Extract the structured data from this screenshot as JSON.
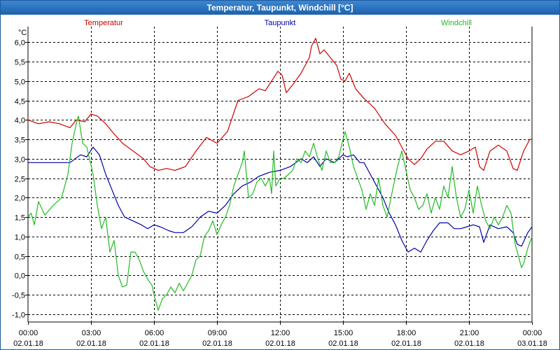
{
  "window": {
    "title": "Temperatur, Taupunkt, Windchill [°C]"
  },
  "chart_data": {
    "type": "line",
    "title": "Temperatur, Taupunkt, Windchill [°C]",
    "ylabel": "°C",
    "xlabel": "",
    "ylim": [
      -1.2,
      6.4
    ],
    "yticks": [
      6.0,
      5.5,
      5.0,
      4.5,
      4.0,
      3.5,
      3.0,
      2.5,
      2.0,
      1.5,
      1.0,
      0.5,
      0.0,
      -0.5,
      -1.0
    ],
    "ytick_labels": [
      "6,0",
      "5,5",
      "5,0",
      "4,5",
      "4,0",
      "3,5",
      "3,0",
      "2,5",
      "2,0",
      "1,5",
      "1,0",
      "0,5",
      "0,0",
      "-0,5",
      "-1,0"
    ],
    "xlim": [
      0,
      24
    ],
    "x_ticks": [
      {
        "h": 0,
        "time": "00:00",
        "date": "02.01.18"
      },
      {
        "h": 3,
        "time": "03:00",
        "date": "02.01.18"
      },
      {
        "h": 6,
        "time": "06:00",
        "date": "02.01.18"
      },
      {
        "h": 9,
        "time": "09:00",
        "date": "02.01.18"
      },
      {
        "h": 12,
        "time": "12:00",
        "date": "02.01.18"
      },
      {
        "h": 15,
        "time": "15:00",
        "date": "02.01.18"
      },
      {
        "h": 18,
        "time": "18:00",
        "date": "02.01.18"
      },
      {
        "h": 21,
        "time": "21:00",
        "date": "02.01.18"
      },
      {
        "h": 24,
        "time": "00:00",
        "date": "03.01.18"
      }
    ],
    "grid": true,
    "series": [
      {
        "name": "Temperatur",
        "color": "#cc0000",
        "legend_position": "top-left",
        "points": [
          [
            0,
            4.0
          ],
          [
            0.5,
            3.9
          ],
          [
            1,
            3.95
          ],
          [
            1.5,
            3.9
          ],
          [
            2,
            3.8
          ],
          [
            2.3,
            4.0
          ],
          [
            2.7,
            3.95
          ],
          [
            3,
            4.15
          ],
          [
            3.3,
            4.1
          ],
          [
            3.7,
            3.9
          ],
          [
            4,
            3.7
          ],
          [
            4.5,
            3.4
          ],
          [
            5,
            3.2
          ],
          [
            5.5,
            3.0
          ],
          [
            5.8,
            2.8
          ],
          [
            6.2,
            2.7
          ],
          [
            6.6,
            2.75
          ],
          [
            7,
            2.7
          ],
          [
            7.5,
            2.8
          ],
          [
            8,
            3.2
          ],
          [
            8.5,
            3.55
          ],
          [
            9,
            3.4
          ],
          [
            9.5,
            3.7
          ],
          [
            10,
            4.5
          ],
          [
            10.5,
            4.6
          ],
          [
            11,
            4.8
          ],
          [
            11.3,
            4.75
          ],
          [
            11.6,
            5.0
          ],
          [
            11.9,
            5.25
          ],
          [
            12.1,
            5.15
          ],
          [
            12.3,
            4.7
          ],
          [
            12.6,
            4.9
          ],
          [
            13,
            5.2
          ],
          [
            13.4,
            5.6
          ],
          [
            13.5,
            5.9
          ],
          [
            13.7,
            6.1
          ],
          [
            13.9,
            5.7
          ],
          [
            14.1,
            5.8
          ],
          [
            14.4,
            5.6
          ],
          [
            14.7,
            5.4
          ],
          [
            14.9,
            5.05
          ],
          [
            15.1,
            5.0
          ],
          [
            15.3,
            5.2
          ],
          [
            15.6,
            4.8
          ],
          [
            16,
            4.55
          ],
          [
            16.5,
            4.3
          ],
          [
            17,
            3.9
          ],
          [
            17.5,
            3.6
          ],
          [
            17.8,
            3.3
          ],
          [
            18.1,
            3.0
          ],
          [
            18.4,
            2.85
          ],
          [
            18.7,
            3.0
          ],
          [
            19,
            3.25
          ],
          [
            19.4,
            3.45
          ],
          [
            19.8,
            3.45
          ],
          [
            20.2,
            3.2
          ],
          [
            20.6,
            3.1
          ],
          [
            21,
            3.2
          ],
          [
            21.3,
            3.3
          ],
          [
            21.5,
            2.8
          ],
          [
            21.7,
            2.7
          ],
          [
            22,
            3.2
          ],
          [
            22.4,
            3.35
          ],
          [
            22.8,
            3.2
          ],
          [
            23.1,
            2.75
          ],
          [
            23.3,
            2.7
          ],
          [
            23.6,
            3.2
          ],
          [
            23.9,
            3.5
          ],
          [
            24,
            3.5
          ]
        ]
      },
      {
        "name": "Taupunkt",
        "color": "#0000aa",
        "legend_position": "top-center",
        "points": [
          [
            0,
            2.9
          ],
          [
            1,
            2.9
          ],
          [
            2,
            2.9
          ],
          [
            2.5,
            3.1
          ],
          [
            2.8,
            3.05
          ],
          [
            3.1,
            3.3
          ],
          [
            3.4,
            3.1
          ],
          [
            3.7,
            2.6
          ],
          [
            4,
            2.2
          ],
          [
            4.3,
            1.8
          ],
          [
            4.6,
            1.5
          ],
          [
            5,
            1.4
          ],
          [
            5.4,
            1.3
          ],
          [
            5.7,
            1.2
          ],
          [
            6,
            1.3
          ],
          [
            6.3,
            1.25
          ],
          [
            6.7,
            1.15
          ],
          [
            7,
            1.1
          ],
          [
            7.4,
            1.1
          ],
          [
            7.8,
            1.25
          ],
          [
            8.2,
            1.5
          ],
          [
            8.6,
            1.65
          ],
          [
            9,
            1.6
          ],
          [
            9.4,
            1.8
          ],
          [
            9.8,
            2.1
          ],
          [
            10.2,
            2.3
          ],
          [
            10.6,
            2.4
          ],
          [
            11,
            2.55
          ],
          [
            11.5,
            2.65
          ],
          [
            12,
            2.7
          ],
          [
            12.5,
            2.8
          ],
          [
            13,
            3.0
          ],
          [
            13.3,
            2.9
          ],
          [
            13.6,
            3.05
          ],
          [
            13.9,
            2.8
          ],
          [
            14.2,
            3.0
          ],
          [
            14.6,
            2.9
          ],
          [
            15,
            3.1
          ],
          [
            15.2,
            3.05
          ],
          [
            15.5,
            3.1
          ],
          [
            15.8,
            2.9
          ],
          [
            16,
            2.9
          ],
          [
            16.3,
            2.6
          ],
          [
            16.6,
            2.3
          ],
          [
            16.9,
            2.0
          ],
          [
            17.2,
            1.6
          ],
          [
            17.5,
            1.3
          ],
          [
            17.8,
            0.9
          ],
          [
            18.1,
            0.6
          ],
          [
            18.4,
            0.7
          ],
          [
            18.7,
            0.6
          ],
          [
            19,
            0.9
          ],
          [
            19.3,
            1.15
          ],
          [
            19.6,
            1.35
          ],
          [
            20,
            1.35
          ],
          [
            20.3,
            1.2
          ],
          [
            20.6,
            1.2
          ],
          [
            20.9,
            1.25
          ],
          [
            21.2,
            1.3
          ],
          [
            21.5,
            1.25
          ],
          [
            21.7,
            0.85
          ],
          [
            22,
            1.3
          ],
          [
            22.4,
            1.2
          ],
          [
            22.8,
            1.25
          ],
          [
            23.1,
            1.1
          ],
          [
            23.3,
            0.8
          ],
          [
            23.5,
            0.75
          ],
          [
            23.8,
            1.1
          ],
          [
            24,
            1.25
          ]
        ]
      },
      {
        "name": "Windchill",
        "color": "#22bb22",
        "legend_position": "top-right",
        "points": [
          [
            0,
            1.5
          ],
          [
            0.15,
            1.6
          ],
          [
            0.3,
            1.3
          ],
          [
            0.5,
            1.9
          ],
          [
            0.8,
            1.55
          ],
          [
            1.2,
            1.8
          ],
          [
            1.6,
            2.0
          ],
          [
            1.9,
            2.6
          ],
          [
            2.1,
            3.4
          ],
          [
            2.3,
            3.9
          ],
          [
            2.4,
            4.1
          ],
          [
            2.6,
            3.4
          ],
          [
            2.8,
            3.3
          ],
          [
            3.1,
            2.6
          ],
          [
            3.3,
            1.8
          ],
          [
            3.5,
            1.2
          ],
          [
            3.7,
            1.5
          ],
          [
            3.9,
            0.6
          ],
          [
            4.1,
            0.9
          ],
          [
            4.3,
            0.0
          ],
          [
            4.5,
            -0.3
          ],
          [
            4.7,
            -0.25
          ],
          [
            4.9,
            0.6
          ],
          [
            5.1,
            0.6
          ],
          [
            5.3,
            0.4
          ],
          [
            5.5,
            0.1
          ],
          [
            5.7,
            -0.1
          ],
          [
            5.9,
            -0.25
          ],
          [
            6.0,
            -0.5
          ],
          [
            6.2,
            -0.9
          ],
          [
            6.4,
            -0.6
          ],
          [
            6.6,
            -0.5
          ],
          [
            6.8,
            -0.3
          ],
          [
            7.0,
            -0.45
          ],
          [
            7.2,
            -0.2
          ],
          [
            7.4,
            -0.4
          ],
          [
            7.6,
            -0.2
          ],
          [
            7.8,
            0.0
          ],
          [
            8.0,
            0.4
          ],
          [
            8.2,
            0.5
          ],
          [
            8.4,
            1.0
          ],
          [
            8.6,
            1.15
          ],
          [
            8.8,
            1.4
          ],
          [
            9.0,
            1.05
          ],
          [
            9.2,
            1.3
          ],
          [
            9.4,
            1.5
          ],
          [
            9.6,
            1.8
          ],
          [
            9.8,
            2.3
          ],
          [
            10.0,
            2.6
          ],
          [
            10.2,
            2.9
          ],
          [
            10.3,
            3.2
          ],
          [
            10.5,
            2.0
          ],
          [
            10.7,
            2.1
          ],
          [
            10.9,
            2.4
          ],
          [
            11.1,
            2.5
          ],
          [
            11.3,
            2.3
          ],
          [
            11.5,
            2.5
          ],
          [
            11.6,
            2.1
          ],
          [
            11.7,
            3.2
          ],
          [
            11.8,
            2.3
          ],
          [
            12,
            2.5
          ],
          [
            12.2,
            2.5
          ],
          [
            12.4,
            2.6
          ],
          [
            12.6,
            2.7
          ],
          [
            12.8,
            3.0
          ],
          [
            13.0,
            2.9
          ],
          [
            13.2,
            3.2
          ],
          [
            13.4,
            3.05
          ],
          [
            13.6,
            3.4
          ],
          [
            13.8,
            3.0
          ],
          [
            14.0,
            2.7
          ],
          [
            14.2,
            3.2
          ],
          [
            14.4,
            2.9
          ],
          [
            14.6,
            2.9
          ],
          [
            14.8,
            3.05
          ],
          [
            15.0,
            3.5
          ],
          [
            15.1,
            3.7
          ],
          [
            15.3,
            3.3
          ],
          [
            15.5,
            2.8
          ],
          [
            15.7,
            2.5
          ],
          [
            15.9,
            2.2
          ],
          [
            16.1,
            1.7
          ],
          [
            16.3,
            2.1
          ],
          [
            16.5,
            1.8
          ],
          [
            16.7,
            2.5
          ],
          [
            16.9,
            1.8
          ],
          [
            17.1,
            1.5
          ],
          [
            17.4,
            2.3
          ],
          [
            17.6,
            2.8
          ],
          [
            17.8,
            3.2
          ],
          [
            18.0,
            2.7
          ],
          [
            18.2,
            2.2
          ],
          [
            18.4,
            2.0
          ],
          [
            18.6,
            1.7
          ],
          [
            18.8,
            1.8
          ],
          [
            19.0,
            2.1
          ],
          [
            19.2,
            1.6
          ],
          [
            19.4,
            2.0
          ],
          [
            19.6,
            1.7
          ],
          [
            19.8,
            2.3
          ],
          [
            20.0,
            2.0
          ],
          [
            20.2,
            2.8
          ],
          [
            20.4,
            2.0
          ],
          [
            20.6,
            1.5
          ],
          [
            20.8,
            1.7
          ],
          [
            21.0,
            2.2
          ],
          [
            21.2,
            1.6
          ],
          [
            21.4,
            2.3
          ],
          [
            21.6,
            1.8
          ],
          [
            21.8,
            1.4
          ],
          [
            22.0,
            1.2
          ],
          [
            22.2,
            1.5
          ],
          [
            22.4,
            1.3
          ],
          [
            22.6,
            1.5
          ],
          [
            22.8,
            1.8
          ],
          [
            23.0,
            1.6
          ],
          [
            23.2,
            0.8
          ],
          [
            23.4,
            0.4
          ],
          [
            23.5,
            0.2
          ],
          [
            23.6,
            0.3
          ],
          [
            23.8,
            0.7
          ],
          [
            24,
            1.0
          ]
        ]
      }
    ]
  }
}
